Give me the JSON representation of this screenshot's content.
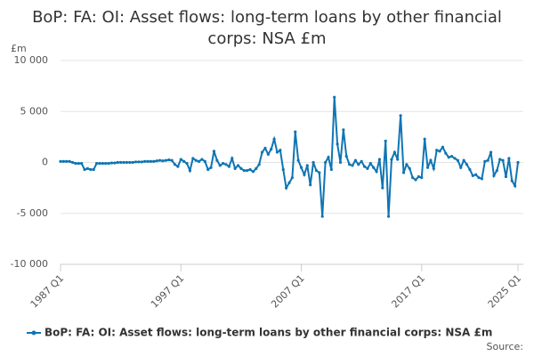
{
  "chart_data": {
    "type": "line",
    "title": "BoP: FA: OI: Asset flows: long-term loans by other financial corps: NSA £m",
    "y_unit": "£m",
    "source": "Source:",
    "categories": [
      "1987 Q1",
      null,
      null,
      null,
      null,
      null,
      null,
      null,
      null,
      null,
      null,
      null,
      null,
      null,
      null,
      null,
      null,
      null,
      null,
      null,
      null,
      null,
      null,
      null,
      null,
      null,
      null,
      null,
      null,
      null,
      null,
      null,
      null,
      null,
      null,
      null,
      null,
      null,
      null,
      null,
      "1997 Q1",
      null,
      null,
      null,
      null,
      null,
      null,
      null,
      null,
      null,
      null,
      null,
      null,
      null,
      null,
      null,
      null,
      null,
      null,
      null,
      null,
      null,
      null,
      null,
      null,
      null,
      null,
      null,
      null,
      null,
      null,
      null,
      null,
      null,
      null,
      null,
      null,
      null,
      null,
      null,
      "2007 Q1",
      null,
      null,
      null,
      null,
      null,
      null,
      null,
      null,
      null,
      null,
      null,
      null,
      null,
      null,
      null,
      null,
      null,
      null,
      null,
      null,
      null,
      null,
      null,
      null,
      null,
      null,
      null,
      null,
      null,
      null,
      null,
      null,
      null,
      null,
      null,
      null,
      null,
      null,
      null,
      "2017 Q1",
      null,
      null,
      null,
      null,
      null,
      null,
      null,
      null,
      null,
      null,
      null,
      null,
      null,
      null,
      null,
      null,
      null,
      null,
      null,
      null,
      null,
      null,
      null,
      null,
      null,
      null,
      null,
      null,
      null,
      null,
      null,
      "2025 Q1"
    ],
    "series": [
      {
        "name": "BoP: FA: OI: Asset flows: long-term loans by other financial corps: NSA £m",
        "color": "#0f75b4",
        "values": [
          100,
          100,
          100,
          100,
          0,
          -100,
          -100,
          -100,
          -700,
          -600,
          -700,
          -700,
          -100,
          -100,
          -100,
          -100,
          -100,
          -50,
          -50,
          0,
          0,
          0,
          0,
          0,
          0,
          50,
          50,
          50,
          100,
          100,
          100,
          100,
          150,
          200,
          150,
          200,
          250,
          200,
          -200,
          -400,
          300,
          100,
          -100,
          -800,
          400,
          200,
          100,
          300,
          100,
          -700,
          -500,
          1100,
          200,
          -300,
          -100,
          -200,
          -400,
          400,
          -600,
          -300,
          -600,
          -800,
          -800,
          -700,
          -900,
          -600,
          -200,
          1000,
          1400,
          800,
          1300,
          2300,
          1000,
          1200,
          -700,
          -2500,
          -2000,
          -1500,
          3000,
          200,
          -500,
          -1200,
          -300,
          -2200,
          0,
          -800,
          -1000,
          -5300,
          0,
          500,
          -700,
          6400,
          1800,
          0,
          3200,
          600,
          -200,
          -300,
          200,
          -200,
          100,
          -400,
          -600,
          -100,
          -500,
          -900,
          300,
          -2500,
          2100,
          -5300,
          300,
          1000,
          300,
          4600,
          -1000,
          -200,
          -600,
          -1500,
          -1700,
          -1400,
          -1500,
          2300,
          -500,
          200,
          -600,
          1200,
          1100,
          1500,
          900,
          500,
          600,
          400,
          200,
          -500,
          200,
          -200,
          -700,
          -1300,
          -1200,
          -1500,
          -1600,
          100,
          200,
          1000,
          -1300,
          -800,
          300,
          200,
          -1400,
          400,
          -1800,
          -2300,
          0
        ]
      }
    ],
    "ylim": [
      -10000,
      10000
    ],
    "yticks": [
      {
        "value": -10000,
        "label": "-10 000"
      },
      {
        "value": -5000,
        "label": "-5 000"
      },
      0,
      {
        "value": 5000,
        "label": "5 000"
      },
      {
        "value": 10000,
        "label": "10 000"
      }
    ],
    "grid": true
  }
}
